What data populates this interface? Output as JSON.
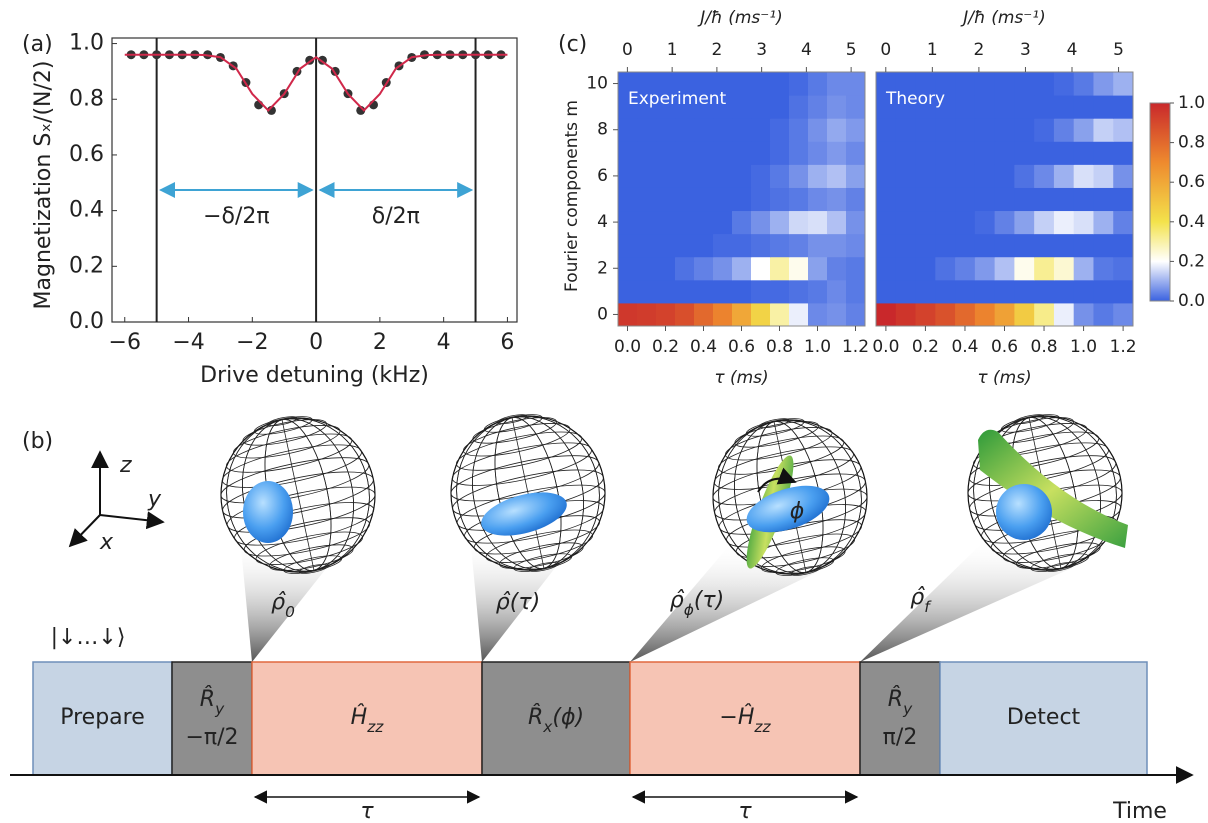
{
  "chart_data": [
    {
      "type": "scatter",
      "panel_label": "(a)",
      "xlabel": "Drive detuning (kHz)",
      "ylabel": "Magnetization Sₓ/(N/2)",
      "xlim": [
        -6.4,
        6.3
      ],
      "ylim": [
        0,
        1.02
      ],
      "xticks": [
        {
          "value": -6,
          "label": "−6"
        },
        {
          "value": -4,
          "label": "−4"
        },
        {
          "value": -2,
          "label": "−2"
        },
        0,
        2,
        4,
        6
      ],
      "yticks": [
        {
          "value": 0,
          "label": "0.0"
        },
        {
          "value": 0.2,
          "label": "0.2"
        },
        {
          "value": 0.4,
          "label": "0.4"
        },
        {
          "value": 0.6,
          "label": "0.6"
        },
        {
          "value": 0.8,
          "label": "0.8"
        },
        {
          "value": 1,
          "label": "1.0"
        }
      ],
      "vlines": [
        -5,
        0,
        5
      ],
      "vline_color": "#222222",
      "arrow_color": "#3ea3d4",
      "annotations": [
        "−δ/2π",
        "δ/2π"
      ],
      "series": [
        {
          "style": "markers",
          "color": "#333333",
          "x": [
            -5.8,
            -5.4,
            -5.0,
            -4.6,
            -4.2,
            -3.8,
            -3.4,
            -3.0,
            -2.6,
            -2.2,
            -1.8,
            -1.4,
            -1.0,
            -0.6,
            -0.2,
            0.2,
            0.6,
            1.0,
            1.4,
            1.8,
            2.2,
            2.6,
            3.0,
            3.4,
            3.8,
            4.2,
            4.6,
            5.0,
            5.4,
            5.8
          ],
          "values": [
            0.96,
            0.96,
            0.96,
            0.96,
            0.96,
            0.96,
            0.96,
            0.95,
            0.92,
            0.86,
            0.78,
            0.76,
            0.82,
            0.9,
            0.94,
            0.94,
            0.9,
            0.82,
            0.76,
            0.78,
            0.86,
            0.92,
            0.95,
            0.96,
            0.96,
            0.96,
            0.96,
            0.96,
            0.96,
            0.96
          ]
        },
        {
          "style": "line",
          "color": "#d0284a",
          "x": [
            -6,
            -5.5,
            -5,
            -4.5,
            -4,
            -3.5,
            -3,
            -2.5,
            -2,
            -1.5,
            -1,
            -0.5,
            0,
            0.5,
            1,
            1.5,
            2,
            2.5,
            3,
            3.5,
            4,
            4.5,
            5,
            5.5,
            6
          ],
          "values": [
            0.96,
            0.96,
            0.96,
            0.96,
            0.96,
            0.959,
            0.951,
            0.91,
            0.819,
            0.76,
            0.819,
            0.91,
            0.951,
            0.91,
            0.819,
            0.76,
            0.819,
            0.91,
            0.951,
            0.959,
            0.96,
            0.96,
            0.96,
            0.96,
            0.96
          ]
        }
      ]
    },
    {
      "type": "heatmap",
      "panel_label": "(c)",
      "label": "Experiment",
      "xlabel": "τ (ms)",
      "x2label": "J/ħ (ms⁻¹)",
      "ylabel": "Fourier components m",
      "x": [
        0,
        0.1,
        0.2,
        0.3,
        0.4,
        0.5,
        0.6,
        0.7,
        0.8,
        0.9,
        1.0,
        1.1,
        1.2
      ],
      "y": [
        0,
        1,
        2,
        3,
        4,
        5,
        6,
        7,
        8,
        9,
        10
      ],
      "xlim": [
        -0.05,
        1.25
      ],
      "ylim": [
        -0.5,
        10.5
      ],
      "x2lim": [
        -0.21,
        5.31
      ],
      "xticks": [
        {
          "value": 0,
          "label": "0.0"
        },
        {
          "value": 0.2,
          "label": "0.2"
        },
        {
          "value": 0.4,
          "label": "0.4"
        },
        {
          "value": 0.6,
          "label": "0.6"
        },
        {
          "value": 0.8,
          "label": "0.8"
        },
        {
          "value": 1,
          "label": "1.0"
        },
        {
          "value": 1.2,
          "label": "1.2"
        }
      ],
      "x2ticks": [
        0,
        1,
        2,
        3,
        4,
        5
      ],
      "yticks": [
        0,
        2,
        4,
        6,
        8,
        10
      ],
      "colormap": [
        {
          "at": 0,
          "color": "#3b62e0"
        },
        {
          "at": 0.2,
          "color": "#ffffff"
        },
        {
          "at": 0.4,
          "color": "#f3e24b"
        },
        {
          "at": 0.7,
          "color": "#ee8a2e"
        },
        {
          "at": 1,
          "color": "#c9282b"
        }
      ],
      "z": [
        [
          0.95,
          0.94,
          0.92,
          0.88,
          0.8,
          0.72,
          0.6,
          0.45,
          0.3,
          0.18,
          0.05,
          0.06,
          0.04
        ],
        [
          0,
          0,
          0,
          0,
          0,
          0,
          0,
          0.01,
          0.01,
          0.02,
          0.03,
          0.05,
          0.03
        ],
        [
          0,
          0,
          0,
          0.02,
          0.04,
          0.06,
          0.1,
          0.2,
          0.3,
          0.22,
          0.08,
          0.04,
          0.03
        ],
        [
          0,
          0,
          0,
          0,
          0,
          0.01,
          0.01,
          0.02,
          0.03,
          0.04,
          0.06,
          0.06,
          0.05
        ],
        [
          0,
          0,
          0,
          0,
          0,
          0,
          0.03,
          0.06,
          0.1,
          0.15,
          0.16,
          0.12,
          0.06
        ],
        [
          0,
          0,
          0,
          0,
          0,
          0,
          0,
          0.01,
          0.02,
          0.03,
          0.05,
          0.06,
          0.04
        ],
        [
          0,
          0,
          0,
          0,
          0,
          0,
          0,
          0.01,
          0.03,
          0.06,
          0.1,
          0.12,
          0.08
        ],
        [
          0,
          0,
          0,
          0,
          0,
          0,
          0,
          0,
          0.01,
          0.03,
          0.05,
          0.07,
          0.05
        ],
        [
          0,
          0,
          0,
          0,
          0,
          0,
          0,
          0,
          0.01,
          0.03,
          0.06,
          0.09,
          0.07
        ],
        [
          0,
          0,
          0,
          0,
          0,
          0,
          0,
          0,
          0,
          0.02,
          0.04,
          0.06,
          0.05
        ],
        [
          0,
          0,
          0,
          0,
          0,
          0,
          0,
          0,
          0,
          0.01,
          0.03,
          0.05,
          0.05
        ]
      ]
    },
    {
      "type": "heatmap",
      "label": "Theory",
      "xlabel": "τ (ms)",
      "x2label": "J/ħ (ms⁻¹)",
      "x": [
        0,
        0.1,
        0.2,
        0.3,
        0.4,
        0.5,
        0.6,
        0.7,
        0.8,
        0.9,
        1.0,
        1.1,
        1.2
      ],
      "y": [
        0,
        1,
        2,
        3,
        4,
        5,
        6,
        7,
        8,
        9,
        10
      ],
      "xlim": [
        -0.05,
        1.25
      ],
      "ylim": [
        -0.5,
        10.5
      ],
      "x2lim": [
        -0.21,
        5.31
      ],
      "xticks": [
        {
          "value": 0,
          "label": "0.0"
        },
        {
          "value": 0.2,
          "label": "0.2"
        },
        {
          "value": 0.4,
          "label": "0.4"
        },
        {
          "value": 0.6,
          "label": "0.6"
        },
        {
          "value": 0.8,
          "label": "0.8"
        },
        {
          "value": 1,
          "label": "1.0"
        },
        {
          "value": 1.2,
          "label": "1.2"
        }
      ],
      "x2ticks": [
        0,
        1,
        2,
        3,
        4,
        5
      ],
      "colormap": [
        {
          "at": 0,
          "color": "#3b62e0"
        },
        {
          "at": 0.2,
          "color": "#ffffff"
        },
        {
          "at": 0.4,
          "color": "#f3e24b"
        },
        {
          "at": 0.7,
          "color": "#ee8a2e"
        },
        {
          "at": 1,
          "color": "#c9282b"
        }
      ],
      "colorbar": {
        "lim": [
          0,
          1
        ],
        "ticks": [
          {
            "value": 0,
            "label": "0.0"
          },
          {
            "value": 0.2,
            "label": "0.2"
          },
          {
            "value": 0.4,
            "label": "0.4"
          },
          {
            "value": 0.6,
            "label": "0.6"
          },
          {
            "value": 0.8,
            "label": "0.8"
          },
          {
            "value": 1,
            "label": "1.0"
          }
        ]
      },
      "z": [
        [
          1.0,
          0.96,
          0.92,
          0.87,
          0.8,
          0.72,
          0.62,
          0.48,
          0.33,
          0.18,
          0.06,
          0.03,
          0.05
        ],
        [
          0,
          0,
          0,
          0,
          0,
          0,
          0,
          0,
          0,
          0,
          0,
          0,
          0
        ],
        [
          0,
          0,
          0,
          0.02,
          0.04,
          0.07,
          0.12,
          0.22,
          0.32,
          0.25,
          0.1,
          0.03,
          0.02
        ],
        [
          0,
          0,
          0,
          0,
          0,
          0,
          0,
          0,
          0,
          0,
          0,
          0,
          0
        ],
        [
          0,
          0,
          0,
          0,
          0,
          0.01,
          0.04,
          0.08,
          0.14,
          0.18,
          0.16,
          0.1,
          0.04
        ],
        [
          0,
          0,
          0,
          0,
          0,
          0,
          0,
          0,
          0,
          0,
          0,
          0,
          0
        ],
        [
          0,
          0,
          0,
          0,
          0,
          0,
          0,
          0.02,
          0.05,
          0.1,
          0.16,
          0.14,
          0.06
        ],
        [
          0,
          0,
          0,
          0,
          0,
          0,
          0,
          0,
          0,
          0,
          0,
          0,
          0
        ],
        [
          0,
          0,
          0,
          0,
          0,
          0,
          0,
          0,
          0.01,
          0.04,
          0.08,
          0.14,
          0.12
        ],
        [
          0,
          0,
          0,
          0,
          0,
          0,
          0,
          0,
          0,
          0,
          0,
          0,
          0
        ],
        [
          0,
          0,
          0,
          0,
          0,
          0,
          0,
          0,
          0,
          0.01,
          0.03,
          0.07,
          0.1
        ]
      ]
    }
  ],
  "diagram": {
    "panel_label": "(b)",
    "axes": [
      "z",
      "y",
      "x"
    ],
    "initial": "|↓…↓⟩",
    "states": [
      {
        "text": "ρ̂",
        "sub": "0"
      },
      {
        "text": "ρ̂(τ)"
      },
      {
        "text": "ρ̂",
        "sub": "ϕ",
        "after": "(τ)"
      },
      {
        "text": "ρ̂",
        "sub": "f"
      }
    ],
    "phase": "ϕ",
    "steps": [
      {
        "text": "Prepare",
        "fill": "#c6d4e4",
        "stroke": "#6f8fba"
      },
      {
        "text": "R̂",
        "sub": "y",
        "line2": "−π/2",
        "fill": "#8e8e8e",
        "stroke": "#222222"
      },
      {
        "text": "Ĥ",
        "sub": "zz",
        "fill": "#f6c4b4",
        "stroke": "#e0683f"
      },
      {
        "text": "R̂",
        "sub": "x",
        "after": "(ϕ)",
        "fill": "#8e8e8e",
        "stroke": "#222222"
      },
      {
        "text": "−Ĥ",
        "sub": "zz",
        "fill": "#f6c4b4",
        "stroke": "#e0683f"
      },
      {
        "text": "R̂",
        "sub": "y",
        "line2": "π/2",
        "fill": "#8e8e8e",
        "stroke": "#222222"
      },
      {
        "text": "Detect",
        "fill": "#c6d4e4",
        "stroke": "#6f8fba"
      }
    ],
    "durations": [
      "τ",
      "τ"
    ],
    "time": "Time"
  }
}
